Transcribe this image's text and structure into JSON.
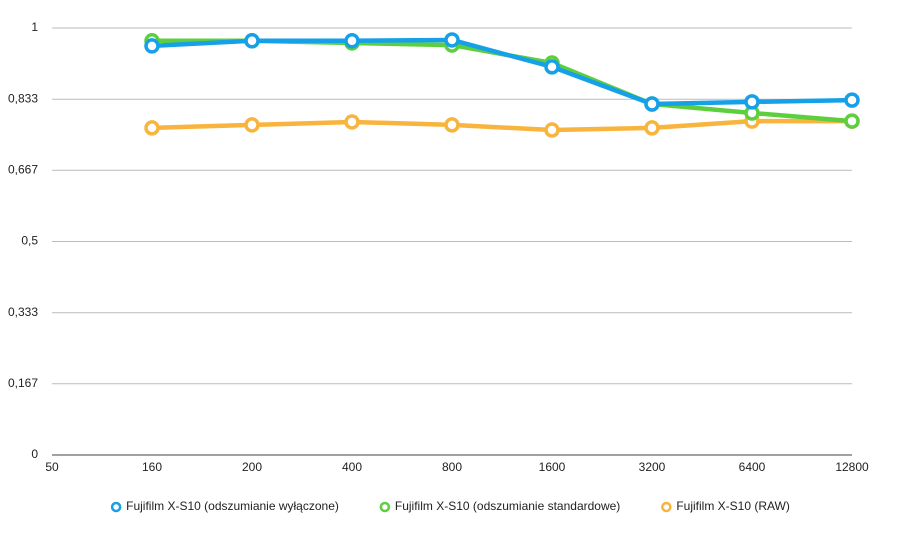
{
  "chart_data": {
    "type": "line",
    "categories": [
      "50",
      "160",
      "200",
      "400",
      "800",
      "1600",
      "3200",
      "6400",
      "12800"
    ],
    "series": [
      {
        "name": "Fujifilm X-S10 (odszumianie wyłączone)",
        "color": "#15a0e8",
        "values": [
          null,
          0.958,
          0.97,
          0.97,
          0.972,
          0.909,
          0.822,
          0.827,
          0.831
        ]
      },
      {
        "name": "Fujifilm X-S10 (odszumianie standardowe)",
        "color": "#5dcf3e",
        "values": [
          null,
          0.97,
          0.97,
          0.965,
          0.96,
          0.918,
          0.822,
          0.801,
          0.782
        ]
      },
      {
        "name": "Fujifilm X-S10 (RAW)",
        "color": "#f8b43c",
        "values": [
          null,
          0.766,
          0.773,
          0.78,
          0.773,
          0.761,
          0.766,
          0.782,
          0.782
        ]
      }
    ],
    "ylim": [
      0,
      1
    ],
    "yticks": [
      0,
      {
        "value": 0.167,
        "label": "0,167"
      },
      {
        "value": 0.333,
        "label": "0,333"
      },
      {
        "value": 0.5,
        "label": "0,5"
      },
      {
        "value": 0.667,
        "label": "0,667"
      },
      {
        "value": 0.833,
        "label": "0,833"
      },
      1
    ],
    "grid": true,
    "legend": "bottom"
  }
}
